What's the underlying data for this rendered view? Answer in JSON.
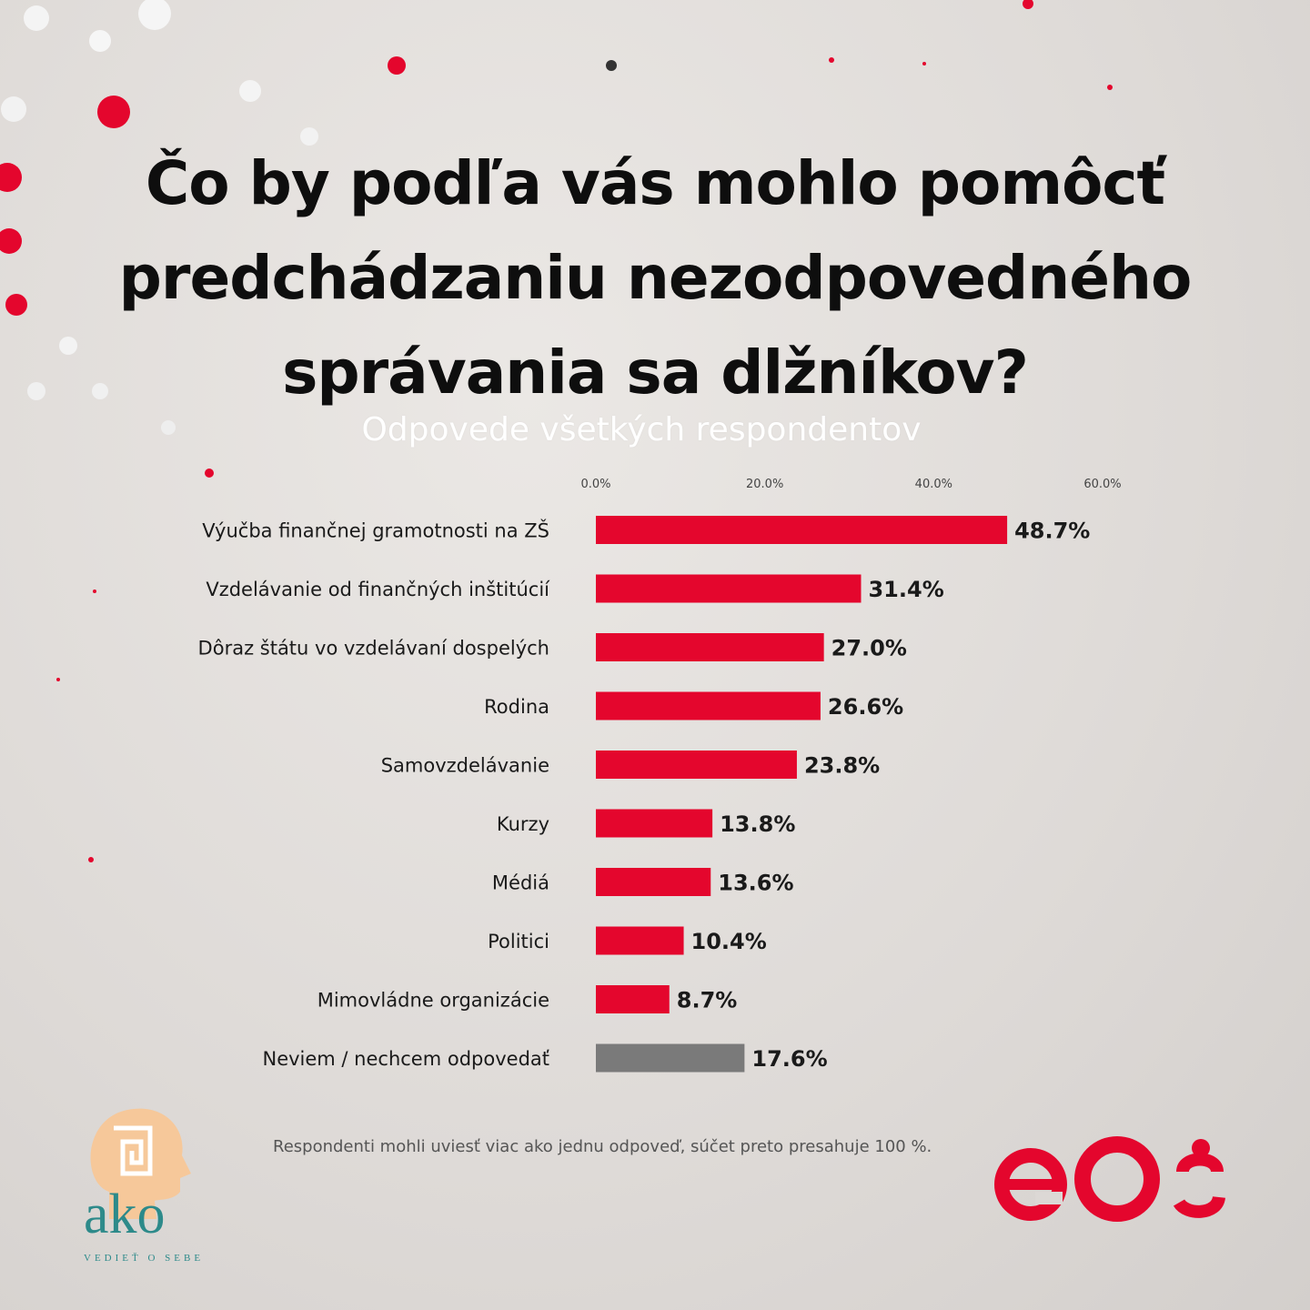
{
  "title_lines": [
    "Čo by podľa vás mohlo pomôcť",
    "predchádzaniu nezodpovedného",
    "správania sa dlžníkov?"
  ],
  "subtitle": "Odpovede všetkých respondentov",
  "note": "Respondenti mohli uviesť viac ako jednu odpoveď, súčet preto presahuje 100 %.",
  "logos": {
    "ako": "ako",
    "ako_tagline": "VEDIEŤ O SEBE",
    "eos": "eOS"
  },
  "colors": {
    "accent": "#e4062d",
    "neutral": "#7a7a7a",
    "background": "#e3e0dd"
  },
  "chart_data": {
    "type": "bar",
    "orientation": "horizontal",
    "categories": [
      "Výučba finančnej gramotnosti na ZŠ",
      "Vzdelávanie od finančných inštitúcií",
      "Dôraz štátu vo vzdelávaní dospelých",
      "Rodina",
      "Samovzdelávanie",
      "Kurzy",
      "Médiá",
      "Politici",
      "Mimovládne organizácie",
      "Neviem / nechcem odpovedať"
    ],
    "values": [
      48.7,
      31.4,
      27.0,
      26.6,
      23.8,
      13.8,
      13.6,
      10.4,
      8.7,
      17.6
    ],
    "value_labels": [
      "48.7%",
      "31.4%",
      "27.0%",
      "26.6%",
      "23.8%",
      "13.8%",
      "13.6%",
      "10.4%",
      "8.7%",
      "17.6%"
    ],
    "bar_colors": [
      "#e4062d",
      "#e4062d",
      "#e4062d",
      "#e4062d",
      "#e4062d",
      "#e4062d",
      "#e4062d",
      "#e4062d",
      "#e4062d",
      "#7a7a7a"
    ],
    "xlim": [
      0,
      60
    ],
    "ticks": [
      0,
      20,
      40,
      60
    ],
    "tick_labels": [
      "0.0%",
      "20.0%",
      "40.0%",
      "60.0%"
    ],
    "grid": false,
    "legend": "none"
  }
}
